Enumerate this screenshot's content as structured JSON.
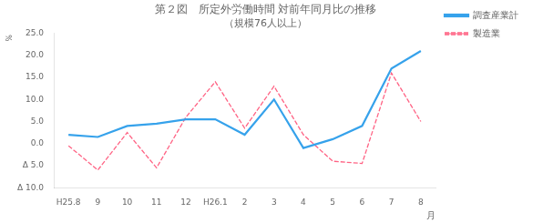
{
  "chart_data": {
    "type": "line",
    "title": "第２図　所定外労働時間 対前年同月比の推移",
    "subtitle": "（規模76人以上）",
    "x_label": "月",
    "y_label": "％",
    "categories": [
      "H25.8",
      "9",
      "10",
      "11",
      "12",
      "H26.1",
      "2",
      "3",
      "4",
      "5",
      "6",
      "7",
      "8"
    ],
    "series": [
      {
        "name": "調査産業計",
        "line_style": "solid",
        "values": [
          2.0,
          1.5,
          4.0,
          4.5,
          5.5,
          5.5,
          2.0,
          10.0,
          -1.0,
          1.0,
          4.0,
          17.0,
          21.0
        ]
      },
      {
        "name": "製造業",
        "line_style": "dashed",
        "values": [
          -0.5,
          -6.0,
          2.5,
          -5.5,
          6.0,
          14.0,
          3.5,
          13.0,
          2.0,
          -4.0,
          -4.5,
          16.0,
          5.0
        ]
      }
    ],
    "ylim": [
      -10.0,
      25.0
    ],
    "yticks": [
      {
        "value": -10.0,
        "label": "Δ 10.0"
      },
      {
        "value": -5.0,
        "label": "Δ 5.0"
      },
      {
        "value": 0.0,
        "label": "0.0"
      },
      {
        "value": 5.0,
        "label": "5.0"
      },
      {
        "value": 10.0,
        "label": "10.0"
      },
      {
        "value": 15.0,
        "label": "15.0"
      },
      {
        "value": 20.0,
        "label": "20.0"
      },
      {
        "value": 25.0,
        "label": "25.0"
      }
    ],
    "grid": false,
    "legend": "right"
  }
}
